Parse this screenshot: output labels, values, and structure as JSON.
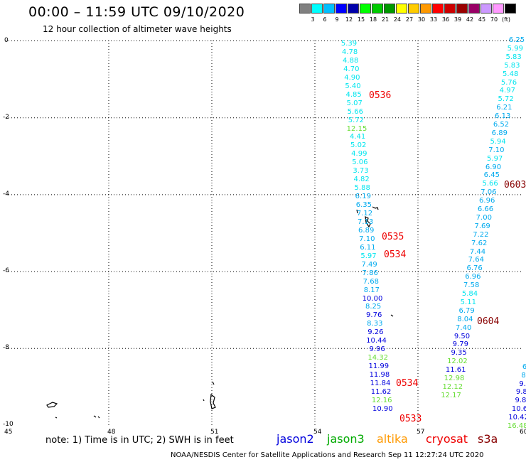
{
  "header": {
    "title": "00:00 – 11:59 UTC 09/10/2020",
    "subtitle": "12 hour collection of altimeter wave heights"
  },
  "colorbar": {
    "colors": [
      "#808080",
      "#00ffff",
      "#00bfff",
      "#0000ff",
      "#0000aa",
      "#00ff00",
      "#00cc00",
      "#009900",
      "#ffff00",
      "#ffcc00",
      "#ff9900",
      "#ff0000",
      "#cc0000",
      "#990000",
      "#990066",
      "#cc99ff",
      "#ff99ff",
      "#000000"
    ],
    "labels": [
      "3",
      "6",
      "9",
      "12",
      "15",
      "18",
      "21",
      "24",
      "27",
      "30",
      "33",
      "36",
      "39",
      "42",
      "45",
      "70",
      "(ft)"
    ]
  },
  "axes": {
    "x_ticks": [
      "45",
      "48",
      "51",
      "54",
      "57",
      "60"
    ],
    "y_ticks": [
      "0",
      "-2",
      "-4",
      "-6",
      "-8",
      "-10"
    ],
    "x_range": [
      45,
      60
    ],
    "y_range": [
      -10,
      0
    ]
  },
  "tracks": {
    "left": [
      {
        "v": "5.39",
        "c": "#00e5ee"
      },
      {
        "v": "4.78",
        "c": "#00e5ee"
      },
      {
        "v": "4.88",
        "c": "#00e5ee"
      },
      {
        "v": "4.70",
        "c": "#00e5ee"
      },
      {
        "v": "4.90",
        "c": "#00e5ee"
      },
      {
        "v": "5.40",
        "c": "#00e5ee"
      },
      {
        "v": "4.85",
        "c": "#00e5ee"
      },
      {
        "v": "5.07",
        "c": "#00e5ee"
      },
      {
        "v": "5.66",
        "c": "#00e5ee"
      },
      {
        "v": "5.72",
        "c": "#00e5ee"
      },
      {
        "v": "12.15",
        "c": "#66dd33"
      },
      {
        "v": "4.41",
        "c": "#00e5ee"
      },
      {
        "v": "5.02",
        "c": "#00e5ee"
      },
      {
        "v": "4.99",
        "c": "#00e5ee"
      },
      {
        "v": "5.06",
        "c": "#00e5ee"
      },
      {
        "v": "3.73",
        "c": "#00e5ee"
      },
      {
        "v": "4.82",
        "c": "#00e5ee"
      },
      {
        "v": "5.88",
        "c": "#00e5ee"
      },
      {
        "v": "6.19",
        "c": "#00aaee"
      },
      {
        "v": "6.35",
        "c": "#00aaee"
      },
      {
        "v": "7.12",
        "c": "#00aaee"
      },
      {
        "v": "7.13",
        "c": "#00aaee"
      },
      {
        "v": "6.89",
        "c": "#00aaee"
      },
      {
        "v": "7.10",
        "c": "#00aaee"
      },
      {
        "v": "6.11",
        "c": "#00aaee"
      },
      {
        "v": "5.97",
        "c": "#00e5ee"
      },
      {
        "v": "7.49",
        "c": "#00aaee"
      },
      {
        "v": "7.86",
        "c": "#00aaee"
      },
      {
        "v": "7.68",
        "c": "#00aaee"
      },
      {
        "v": "8.17",
        "c": "#00aaee"
      },
      {
        "v": "10.00",
        "c": "#0000dd"
      },
      {
        "v": "8.25",
        "c": "#00aaee"
      },
      {
        "v": "9.76",
        "c": "#0000dd"
      },
      {
        "v": "8.33",
        "c": "#00aaee"
      },
      {
        "v": "9.26",
        "c": "#0000dd"
      },
      {
        "v": "10.44",
        "c": "#0000dd"
      },
      {
        "v": "9.96",
        "c": "#0000dd"
      },
      {
        "v": "14.32",
        "c": "#66dd33"
      },
      {
        "v": "11.99",
        "c": "#0000dd"
      },
      {
        "v": "11.98",
        "c": "#0000dd"
      },
      {
        "v": "11.84",
        "c": "#0000dd"
      },
      {
        "v": "11.62",
        "c": "#0000dd"
      },
      {
        "v": "12.16",
        "c": "#66dd33"
      },
      {
        "v": "10.90",
        "c": "#0000dd"
      }
    ],
    "right": [
      {
        "v": "6.25",
        "c": "#00aaee"
      },
      {
        "v": "5.99",
        "c": "#00e5ee"
      },
      {
        "v": "5.83",
        "c": "#00e5ee"
      },
      {
        "v": "5.83",
        "c": "#00e5ee"
      },
      {
        "v": "5.48",
        "c": "#00e5ee"
      },
      {
        "v": "5.76",
        "c": "#00e5ee"
      },
      {
        "v": "4.97",
        "c": "#00e5ee"
      },
      {
        "v": "5.72",
        "c": "#00e5ee"
      },
      {
        "v": "6.21",
        "c": "#00aaee"
      },
      {
        "v": "6.13",
        "c": "#00aaee"
      },
      {
        "v": "6.52",
        "c": "#00aaee"
      },
      {
        "v": "6.89",
        "c": "#00aaee"
      },
      {
        "v": "5.94",
        "c": "#00e5ee"
      },
      {
        "v": "7.10",
        "c": "#00aaee"
      },
      {
        "v": "5.97",
        "c": "#00e5ee"
      },
      {
        "v": "6.90",
        "c": "#00aaee"
      },
      {
        "v": "6.45",
        "c": "#00aaee"
      },
      {
        "v": "5.66",
        "c": "#00e5ee"
      },
      {
        "v": "7.06",
        "c": "#00aaee"
      },
      {
        "v": "6.96",
        "c": "#00aaee"
      },
      {
        "v": "6.66",
        "c": "#00aaee"
      },
      {
        "v": "7.00",
        "c": "#00aaee"
      },
      {
        "v": "7.69",
        "c": "#00aaee"
      },
      {
        "v": "7.22",
        "c": "#00aaee"
      },
      {
        "v": "7.62",
        "c": "#00aaee"
      },
      {
        "v": "7.44",
        "c": "#00aaee"
      },
      {
        "v": "7.64",
        "c": "#00aaee"
      },
      {
        "v": "6.76",
        "c": "#00aaee"
      },
      {
        "v": "6.96",
        "c": "#00aaee"
      },
      {
        "v": "7.58",
        "c": "#00aaee"
      },
      {
        "v": "5.84",
        "c": "#00e5ee"
      },
      {
        "v": "5.11",
        "c": "#00e5ee"
      },
      {
        "v": "6.79",
        "c": "#00aaee"
      },
      {
        "v": "8.04",
        "c": "#00aaee"
      },
      {
        "v": "7.40",
        "c": "#00aaee"
      },
      {
        "v": "9.50",
        "c": "#0000dd"
      },
      {
        "v": "9.79",
        "c": "#0000dd"
      },
      {
        "v": "9.35",
        "c": "#0000dd"
      },
      {
        "v": "12.02",
        "c": "#66dd33"
      },
      {
        "v": "11.61",
        "c": "#0000dd"
      },
      {
        "v": "12.98",
        "c": "#66dd33"
      },
      {
        "v": "12.12",
        "c": "#66dd33"
      },
      {
        "v": "12.17",
        "c": "#66dd33"
      }
    ],
    "edge": [
      {
        "v": "6",
        "c": "#00aaee"
      },
      {
        "v": "8",
        "c": "#00aaee"
      },
      {
        "v": "9.",
        "c": "#0000dd"
      },
      {
        "v": "9.8",
        "c": "#0000dd"
      },
      {
        "v": "9.8",
        "c": "#0000dd"
      },
      {
        "v": "10.6",
        "c": "#0000dd"
      },
      {
        "v": "10.42",
        "c": "#0000dd"
      },
      {
        "v": "16.48",
        "c": "#66dd33"
      }
    ]
  },
  "time_labels": [
    {
      "text": "0536",
      "color": "#ee0000"
    },
    {
      "text": "0535",
      "color": "#ee0000"
    },
    {
      "text": "0534",
      "color": "#ee0000"
    },
    {
      "text": "0534",
      "color": "#ee0000"
    },
    {
      "text": "0533",
      "color": "#ee0000"
    },
    {
      "text": "0603",
      "color": "#880000"
    },
    {
      "text": "0604",
      "color": "#880000"
    }
  ],
  "note": "note: 1) Time is in UTC; 2) SWH is in feet",
  "legend": [
    {
      "name": "jason2",
      "color": "#0000dd"
    },
    {
      "name": "jason3",
      "color": "#00aa00"
    },
    {
      "name": "altika",
      "color": "#ff9900"
    },
    {
      "name": "cryosat",
      "color": "#ee0000"
    },
    {
      "name": "s3a",
      "color": "#880000"
    }
  ],
  "footer": "NOAA/NESDIS Center for Satellite Applications and Research   Sep 11 12:27:24 UTC 2020"
}
